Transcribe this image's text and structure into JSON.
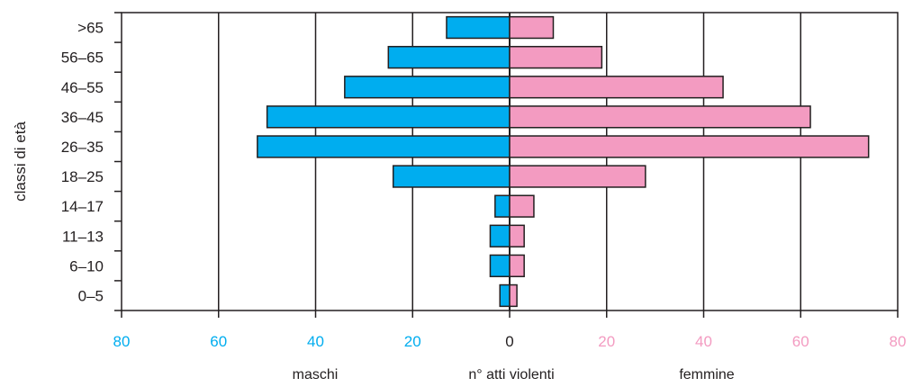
{
  "chart_data": {
    "type": "bar",
    "orientation": "horizontal",
    "layout": "population-pyramid",
    "categories": [
      "0–5",
      "6–10",
      "11–13",
      "14–17",
      "18–25",
      "26–35",
      "36–45",
      "46–55",
      "56–65",
      ">65"
    ],
    "series": [
      {
        "name": "maschi",
        "values": [
          2,
          4,
          4,
          3,
          24,
          52,
          50,
          34,
          25,
          13
        ],
        "color": "#00adef",
        "side": "left"
      },
      {
        "name": "femmine",
        "values": [
          1.5,
          3,
          3,
          5,
          28,
          74,
          62,
          44,
          19,
          9
        ],
        "color": "#f39bc1",
        "side": "right"
      }
    ],
    "x_ticks": [
      80,
      60,
      40,
      20,
      0,
      20,
      40,
      60,
      80
    ],
    "xlim": [
      -80,
      80
    ],
    "ylabel": "classi di età",
    "bottom_labels": {
      "left": "maschi",
      "center": "n° atti violenti",
      "right": "femmine"
    },
    "tick_colors": {
      "left": "#00adef",
      "center": "#231f20",
      "right": "#f39bc1"
    },
    "grid": true
  }
}
